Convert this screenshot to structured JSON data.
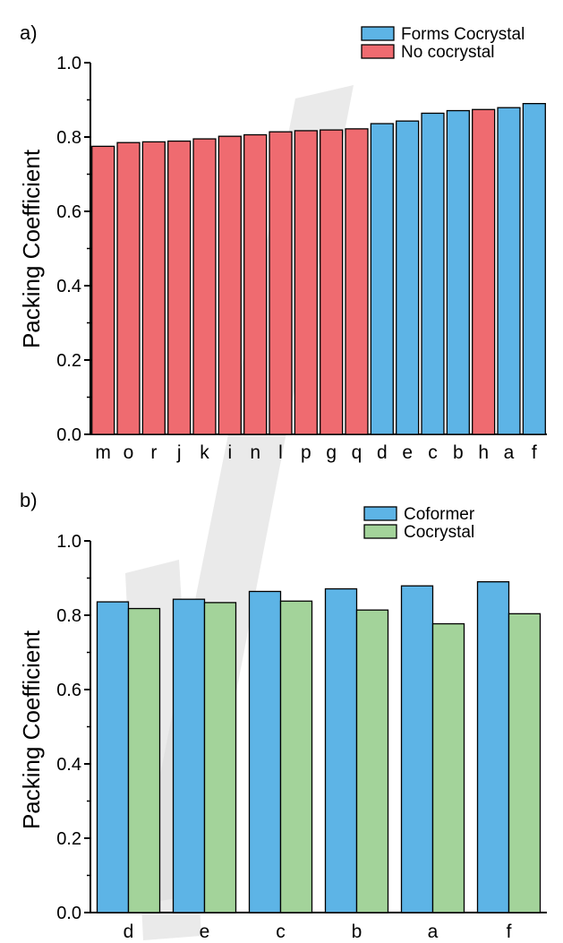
{
  "colors": {
    "blue": "#5db4e6",
    "red": "#ef6b70",
    "green": "#a3d39a",
    "watermark": "#d9d9d9"
  },
  "chart_data": [
    {
      "type": "bar",
      "panel_label": "a)",
      "categories": [
        "m",
        "o",
        "r",
        "j",
        "k",
        "i",
        "n",
        "l",
        "p",
        "g",
        "q",
        "d",
        "e",
        "c",
        "b",
        "h",
        "a",
        "f"
      ],
      "values": [
        0.775,
        0.785,
        0.787,
        0.789,
        0.795,
        0.802,
        0.806,
        0.814,
        0.817,
        0.819,
        0.822,
        0.836,
        0.843,
        0.864,
        0.871,
        0.874,
        0.879,
        0.89
      ],
      "groups": [
        "No cocrystal",
        "No cocrystal",
        "No cocrystal",
        "No cocrystal",
        "No cocrystal",
        "No cocrystal",
        "No cocrystal",
        "No cocrystal",
        "No cocrystal",
        "No cocrystal",
        "No cocrystal",
        "Forms Cocrystal",
        "Forms Cocrystal",
        "Forms Cocrystal",
        "Forms Cocrystal",
        "No cocrystal",
        "Forms Cocrystal",
        "Forms Cocrystal"
      ],
      "legend": [
        {
          "name": "Forms Cocrystal",
          "color": "#5db4e6"
        },
        {
          "name": "No cocrystal",
          "color": "#ef6b70"
        }
      ],
      "legend_position": "top-right",
      "ylabel": "Packing Coefficient",
      "xlabel": "",
      "ylim": [
        0,
        1.0
      ],
      "yticks": [
        "0.0",
        "0.2",
        "0.4",
        "0.6",
        "0.8",
        "1.0"
      ],
      "grid": false
    },
    {
      "type": "bar",
      "panel_label": "b)",
      "categories": [
        "d",
        "e",
        "c",
        "b",
        "a",
        "f"
      ],
      "series": [
        {
          "name": "Coformer",
          "color": "#5db4e6",
          "values": [
            0.836,
            0.843,
            0.864,
            0.871,
            0.879,
            0.89
          ]
        },
        {
          "name": "Cocrystal",
          "color": "#a3d39a",
          "values": [
            0.818,
            0.834,
            0.838,
            0.814,
            0.777,
            0.804
          ]
        }
      ],
      "legend_position": "top-right",
      "ylabel": "Packing Coefficient",
      "xlabel": "",
      "ylim": [
        0,
        1.0
      ],
      "yticks": [
        "0.0",
        "0.2",
        "0.4",
        "0.6",
        "0.8",
        "1.0"
      ],
      "grid": false
    }
  ]
}
